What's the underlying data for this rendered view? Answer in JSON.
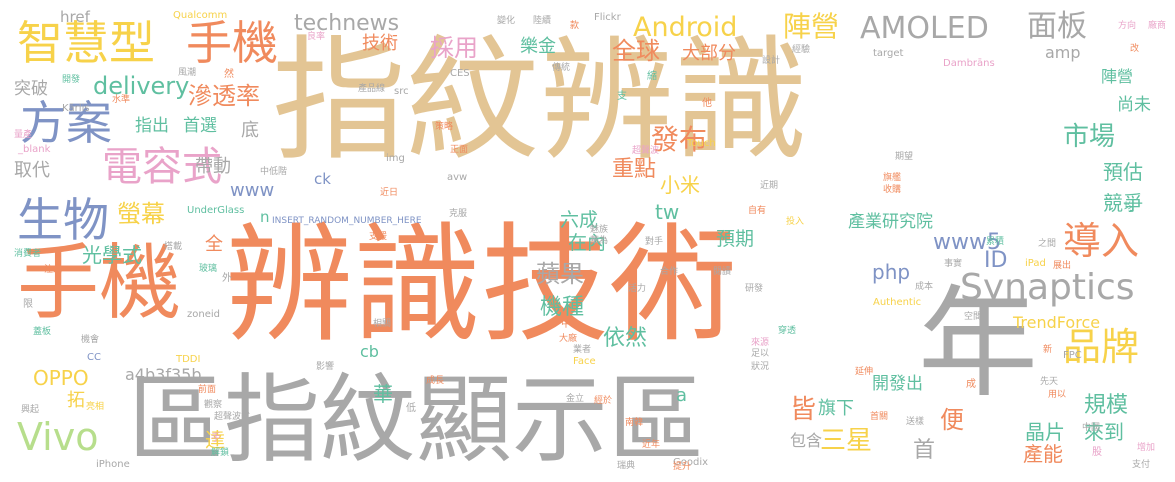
{
  "palette": {
    "tan": "#e3c594",
    "orange": "#f08a5d",
    "gray": "#a8a8a8",
    "yellow": "#f7d24a",
    "blue": "#7f93c5",
    "green": "#9ccc65",
    "teal": "#5fbfa0",
    "pink": "#e9a3c9",
    "lightgreen": "#b7de8c"
  },
  "words": [
    {
      "text": "指紋辨識",
      "color": "tan"
    },
    {
      "text": "辨識技術",
      "color": "orange"
    },
    {
      "text": "區指紋顯示區",
      "color": "gray"
    },
    {
      "text": "手機",
      "color": "orange"
    },
    {
      "text": "年",
      "color": "gray"
    },
    {
      "text": "智慧型",
      "color": "yellow"
    },
    {
      "text": "手機",
      "color": "orange"
    },
    {
      "text": "AMOLED",
      "color": "gray"
    },
    {
      "text": "面板",
      "color": "gray"
    },
    {
      "text": "Android",
      "color": "yellow"
    },
    {
      "text": "陣營",
      "color": "yellow"
    },
    {
      "text": "technews",
      "color": "gray"
    },
    {
      "text": "方案",
      "color": "blue"
    },
    {
      "text": "電容式",
      "color": "pink"
    },
    {
      "text": "生物",
      "color": "blue"
    },
    {
      "text": "Synaptics",
      "color": "gray"
    },
    {
      "text": "導入",
      "color": "orange"
    },
    {
      "text": "品牌",
      "color": "yellow"
    },
    {
      "text": "Vivo",
      "color": "lightgreen"
    },
    {
      "text": "採用",
      "color": "pink"
    },
    {
      "text": "樂金",
      "color": "teal"
    },
    {
      "text": "全球",
      "color": "orange"
    },
    {
      "text": "大部分",
      "color": "orange"
    },
    {
      "text": "delivery",
      "color": "teal"
    },
    {
      "text": "滲透率",
      "color": "orange"
    },
    {
      "text": "發布",
      "color": "orange"
    },
    {
      "text": "市場",
      "color": "teal"
    },
    {
      "text": "技術",
      "color": "orange"
    },
    {
      "text": "href",
      "color": "gray"
    },
    {
      "text": "Qualcomm",
      "color": "yellow"
    },
    {
      "text": "突破",
      "color": "gray"
    },
    {
      "text": "重點",
      "color": "orange"
    },
    {
      "text": "小米",
      "color": "yellow"
    },
    {
      "text": "螢幕",
      "color": "yellow"
    },
    {
      "text": "帶動",
      "color": "gray"
    },
    {
      "text": "取代",
      "color": "gray"
    },
    {
      "text": "www",
      "color": "blue"
    },
    {
      "text": "www5",
      "color": "blue"
    },
    {
      "text": "tw",
      "color": "teal"
    },
    {
      "text": "ID",
      "color": "blue"
    },
    {
      "text": "php",
      "color": "blue"
    },
    {
      "text": "光學式",
      "color": "teal"
    },
    {
      "text": "蘋果",
      "color": "gray"
    },
    {
      "text": "機種",
      "color": "teal"
    },
    {
      "text": "依然",
      "color": "teal"
    },
    {
      "text": "OPPO",
      "color": "yellow"
    },
    {
      "text": "a4b3f35b",
      "color": "gray"
    },
    {
      "text": "cb",
      "color": "teal"
    },
    {
      "text": "三星",
      "color": "yellow"
    },
    {
      "text": "規模",
      "color": "teal"
    },
    {
      "text": "旗下",
      "color": "teal"
    },
    {
      "text": "晶片",
      "color": "teal"
    },
    {
      "text": "產能",
      "color": "orange"
    },
    {
      "text": "來到",
      "color": "teal"
    },
    {
      "text": "包含",
      "color": "gray"
    },
    {
      "text": "產業研究院",
      "color": "teal"
    },
    {
      "text": "競爭",
      "color": "teal"
    },
    {
      "text": "預估",
      "color": "teal"
    },
    {
      "text": "尚未",
      "color": "teal"
    },
    {
      "text": "陣營",
      "color": "teal"
    },
    {
      "text": "TrendForce",
      "color": "yellow"
    },
    {
      "text": "開發出",
      "color": "teal"
    },
    {
      "text": "首選",
      "color": "teal"
    },
    {
      "text": "指出",
      "color": "teal"
    },
    {
      "text": "預期",
      "color": "teal"
    },
    {
      "text": "六成",
      "color": "teal"
    },
    {
      "text": "在內",
      "color": "teal"
    },
    {
      "text": "皆",
      "color": "orange"
    },
    {
      "text": "便",
      "color": "orange"
    },
    {
      "text": "首",
      "color": "gray"
    },
    {
      "text": "華",
      "color": "teal"
    },
    {
      "text": "達",
      "color": "yellow"
    },
    {
      "text": "拓",
      "color": "yellow"
    },
    {
      "text": "全",
      "color": "orange"
    },
    {
      "text": "底",
      "color": "gray"
    },
    {
      "text": "a",
      "color": "teal"
    },
    {
      "text": "amp",
      "color": "gray"
    },
    {
      "text": "n",
      "color": "teal"
    },
    {
      "text": "ck",
      "color": "blue"
    },
    {
      "text": "UnderGlass",
      "color": "teal"
    },
    {
      "text": "INSERT_RANDOM_NUMBER_HERE",
      "color": "blue"
    },
    {
      "text": "Flickr",
      "color": "gray"
    },
    {
      "text": "CES",
      "color": "gray"
    },
    {
      "text": "Dambrāns",
      "color": "pink"
    },
    {
      "text": "target",
      "color": "gray"
    },
    {
      "text": "Kārlis",
      "color": "gray"
    },
    {
      "text": "_blank",
      "color": "pink"
    },
    {
      "text": "Goodix",
      "color": "gray"
    },
    {
      "text": "Authentic",
      "color": "yellow"
    },
    {
      "text": "TDDI",
      "color": "yellow"
    },
    {
      "text": "FPC",
      "color": "gray"
    },
    {
      "text": "iPhone",
      "color": "gray"
    },
    {
      "text": "iPad",
      "color": "yellow"
    },
    {
      "text": "Face",
      "color": "yellow"
    },
    {
      "text": "Touch",
      "color": "yellow"
    },
    {
      "text": "zoneid",
      "color": "gray"
    },
    {
      "text": "img",
      "color": "gray"
    },
    {
      "text": "avw",
      "color": "gray"
    },
    {
      "text": "src",
      "color": "gray"
    },
    {
      "text": "CC",
      "color": "blue"
    },
    {
      "text": "良率",
      "color": "pink"
    },
    {
      "text": "變化",
      "color": "gray"
    },
    {
      "text": "陸續",
      "color": "gray"
    },
    {
      "text": "款",
      "color": "orange"
    },
    {
      "text": "經驗",
      "color": "gray"
    },
    {
      "text": "方向",
      "color": "pink"
    },
    {
      "text": "廠商",
      "color": "pink"
    },
    {
      "text": "改",
      "color": "orange"
    },
    {
      "text": "設計",
      "color": "gray"
    },
    {
      "text": "傳統",
      "color": "gray"
    },
    {
      "text": "風潮",
      "color": "gray"
    },
    {
      "text": "開發",
      "color": "teal"
    },
    {
      "text": "水準",
      "color": "orange"
    },
    {
      "text": "產品線",
      "color": "gray"
    },
    {
      "text": "策略",
      "color": "orange"
    },
    {
      "text": "超聲波",
      "color": "pink"
    },
    {
      "text": "正面",
      "color": "orange"
    },
    {
      "text": "中低階",
      "color": "gray"
    },
    {
      "text": "近日",
      "color": "orange"
    },
    {
      "text": "期望",
      "color": "gray"
    },
    {
      "text": "旗艦",
      "color": "orange"
    },
    {
      "text": "收購",
      "color": "orange"
    },
    {
      "text": "近期",
      "color": "gray"
    },
    {
      "text": "自有",
      "color": "orange"
    },
    {
      "text": "投入",
      "color": "yellow"
    },
    {
      "text": "累積",
      "color": "teal"
    },
    {
      "text": "事實",
      "color": "gray"
    },
    {
      "text": "之間",
      "color": "gray"
    },
    {
      "text": "展出",
      "color": "orange"
    },
    {
      "text": "消費者",
      "color": "teal"
    },
    {
      "text": "注入",
      "color": "orange"
    },
    {
      "text": "搭載",
      "color": "gray"
    },
    {
      "text": "玻璃",
      "color": "teal"
    },
    {
      "text": "克服",
      "color": "gray"
    },
    {
      "text": "支援",
      "color": "orange"
    },
    {
      "text": "魅族",
      "color": "gray"
    },
    {
      "text": "華為",
      "color": "gray"
    },
    {
      "text": "對手",
      "color": "gray"
    },
    {
      "text": "合作",
      "color": "gray"
    },
    {
      "text": "閱讀",
      "color": "gray"
    },
    {
      "text": "研發",
      "color": "gray"
    },
    {
      "text": "活力",
      "color": "gray"
    },
    {
      "text": "成本",
      "color": "gray"
    },
    {
      "text": "空間",
      "color": "gray"
    },
    {
      "text": "穿透",
      "color": "teal"
    },
    {
      "text": "來源",
      "color": "pink"
    },
    {
      "text": "足以",
      "color": "gray"
    },
    {
      "text": "狀況",
      "color": "gray"
    },
    {
      "text": "大廠",
      "color": "orange"
    },
    {
      "text": "業者",
      "color": "gray"
    },
    {
      "text": "延伸",
      "color": "orange"
    },
    {
      "text": "新",
      "color": "orange"
    },
    {
      "text": "先天",
      "color": "gray"
    },
    {
      "text": "用以",
      "color": "orange"
    },
    {
      "text": "首關",
      "color": "orange"
    },
    {
      "text": "送樣",
      "color": "gray"
    },
    {
      "text": "增加",
      "color": "pink"
    },
    {
      "text": "支付",
      "color": "gray"
    },
    {
      "text": "中國",
      "color": "gray"
    },
    {
      "text": "蓋板",
      "color": "teal"
    },
    {
      "text": "機會",
      "color": "gray"
    },
    {
      "text": "影響",
      "color": "gray"
    },
    {
      "text": "前面",
      "color": "orange"
    },
    {
      "text": "成長",
      "color": "orange"
    },
    {
      "text": "觀察",
      "color": "gray"
    },
    {
      "text": "超聲波式",
      "color": "gray"
    },
    {
      "text": "解鎖",
      "color": "teal"
    },
    {
      "text": "亮相",
      "color": "yellow"
    },
    {
      "text": "興起",
      "color": "gray"
    },
    {
      "text": "金立",
      "color": "gray"
    },
    {
      "text": "南韓",
      "color": "orange"
    },
    {
      "text": "近年",
      "color": "orange"
    },
    {
      "text": "提升",
      "color": "orange"
    },
    {
      "text": "瑞典",
      "color": "gray"
    },
    {
      "text": "經於",
      "color": "orange"
    },
    {
      "text": "相關",
      "color": "gray"
    },
    {
      "text": "限",
      "color": "gray"
    },
    {
      "text": "外",
      "color": "gray"
    },
    {
      "text": "低",
      "color": "gray"
    },
    {
      "text": "手",
      "color": "pink"
    },
    {
      "text": "成",
      "color": "orange"
    },
    {
      "text": "股",
      "color": "pink"
    },
    {
      "text": "他",
      "color": "orange"
    },
    {
      "text": "中",
      "color": "orange"
    },
    {
      "text": "支",
      "color": "teal"
    },
    {
      "text": "均",
      "color": "teal"
    },
    {
      "text": "然",
      "color": "orange"
    },
    {
      "text": "縮",
      "color": "teal"
    },
    {
      "text": "量產",
      "color": "pink"
    }
  ]
}
